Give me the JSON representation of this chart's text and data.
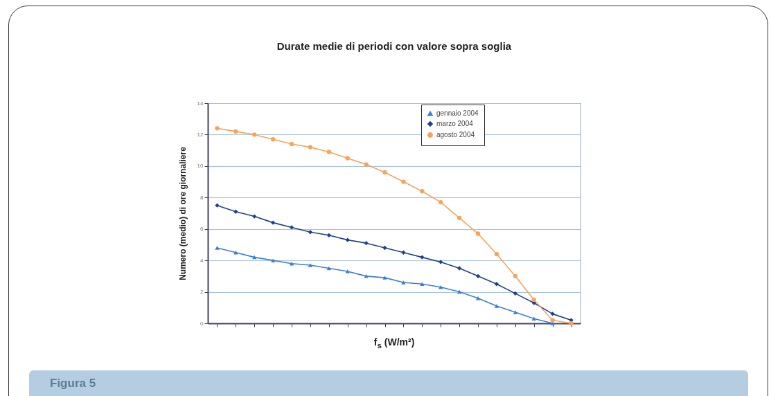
{
  "chart_data": {
    "type": "line",
    "title": "Durate medie di periodi con valore sopra soglia",
    "xlabel": "f$_{s}$ (W/m²)",
    "ylabel": "Numero (medio) di ore giornaliere",
    "annotations": [
      "Figura 5"
    ],
    "categories": [
      null,
      null,
      null,
      null,
      null,
      null,
      null,
      null,
      null,
      null,
      null,
      null,
      null,
      null,
      null,
      null,
      null,
      null,
      null,
      null
    ],
    "series": [
      {
        "name": "gennaio 2004",
        "color": "#3a7fd5",
        "marker": "triangle",
        "values": [
          4.8,
          4.5,
          4.2,
          4.0,
          3.8,
          3.7,
          3.5,
          3.3,
          3.0,
          2.9,
          2.6,
          2.5,
          2.3,
          2.0,
          1.6,
          1.1,
          0.7,
          0.3,
          0.0,
          null
        ]
      },
      {
        "name": "marzo 2004",
        "color": "#1f3f8f",
        "marker": "diamond",
        "values": [
          7.5,
          7.1,
          6.8,
          6.4,
          6.1,
          5.8,
          5.6,
          5.3,
          5.1,
          4.8,
          4.5,
          4.2,
          3.9,
          3.5,
          3.0,
          2.5,
          1.9,
          1.3,
          0.6,
          0.2
        ]
      },
      {
        "name": "agosto 2004",
        "color": "#f5a45a",
        "marker": "circle",
        "values": [
          12.4,
          12.2,
          12.0,
          11.7,
          11.4,
          11.2,
          10.9,
          10.5,
          10.1,
          9.6,
          9.0,
          8.4,
          7.7,
          6.7,
          5.7,
          4.4,
          3.0,
          1.5,
          0.2,
          0.0
        ]
      }
    ],
    "ylim": [
      0,
      14
    ],
    "yticks": [
      0,
      2,
      4,
      6,
      8,
      10,
      12,
      14
    ],
    "grid": "y",
    "legend": "top right",
    "tick_labels": "y"
  }
}
